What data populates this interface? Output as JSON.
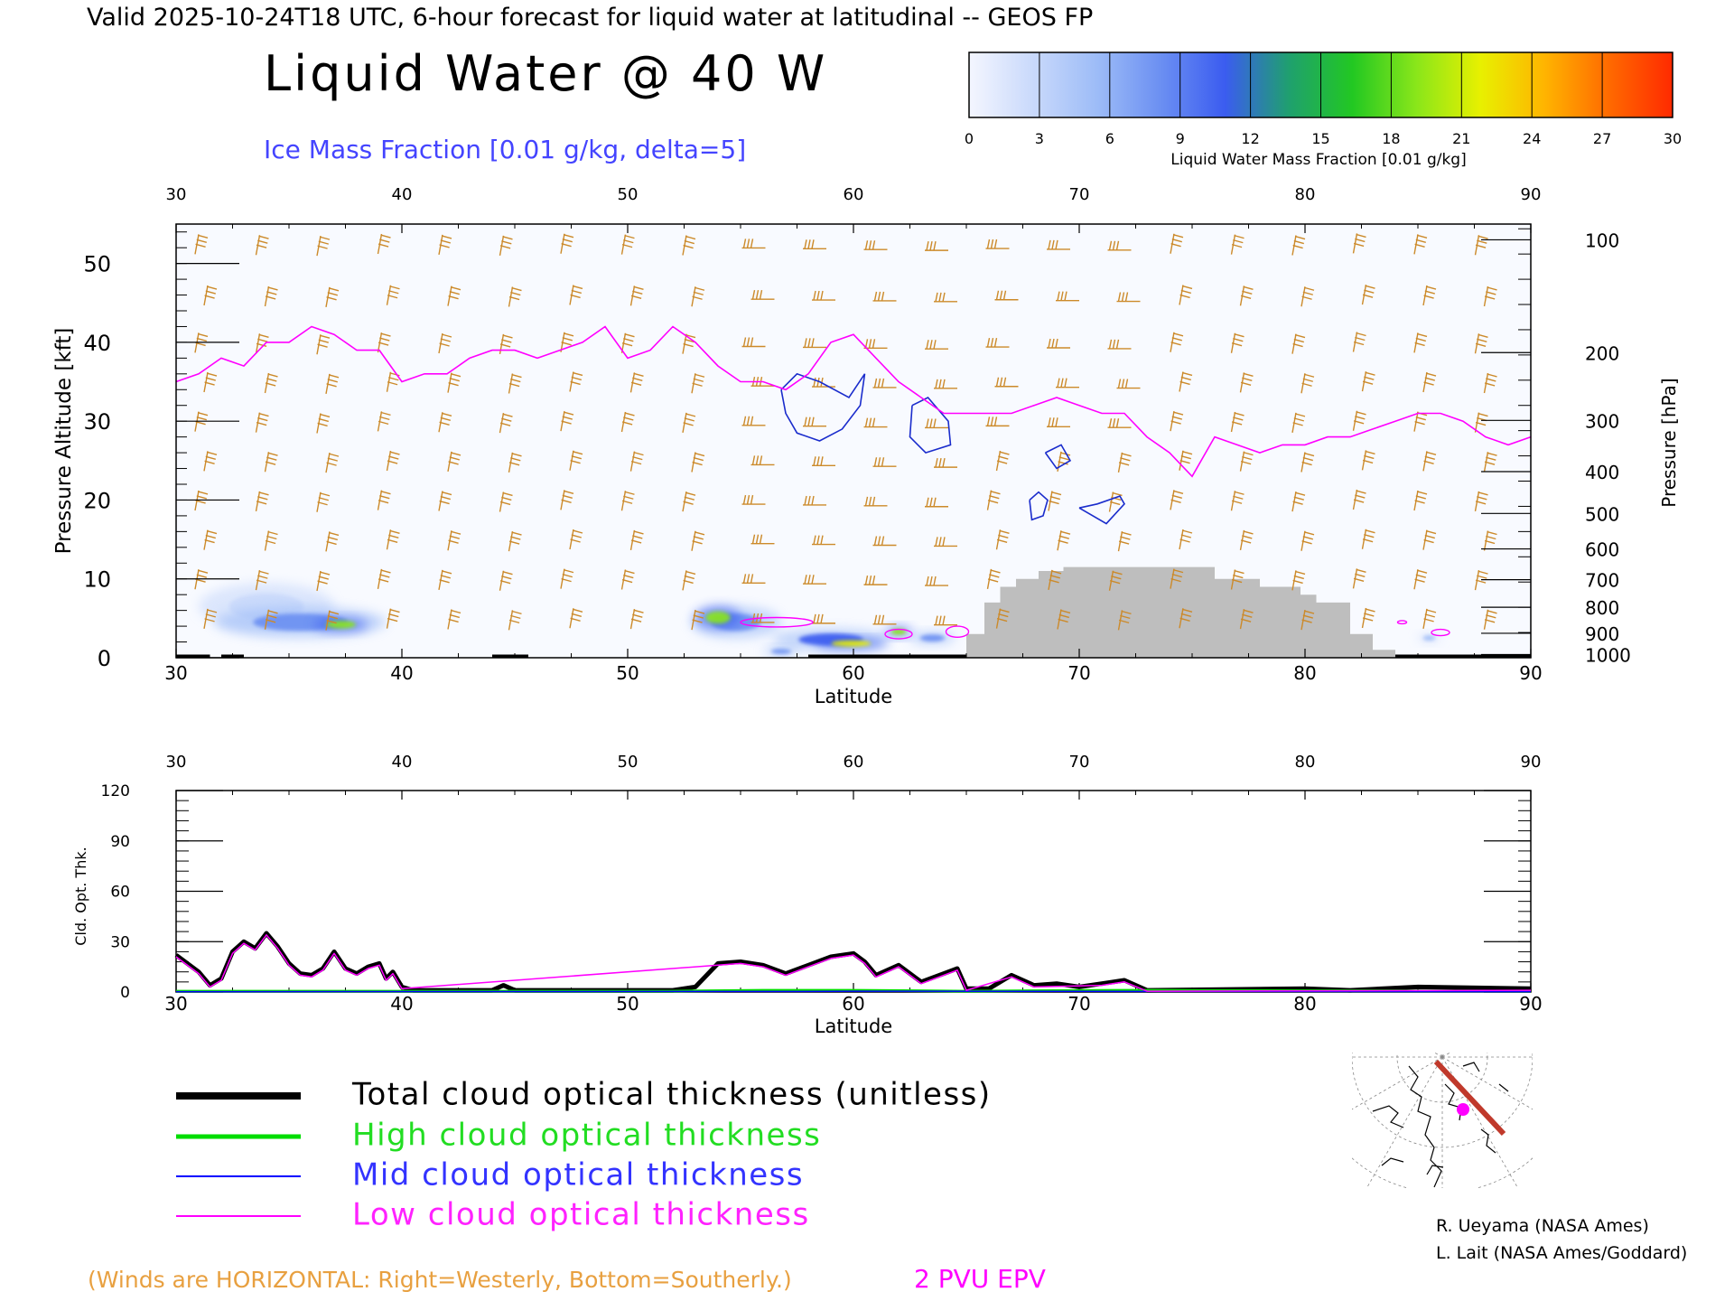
{
  "header": {
    "valid_line": "Valid 2025-10-24T18 UTC, 6-hour forecast for liquid water at latitudinal -- GEOS FP",
    "title": "Liquid Water @ 40 W",
    "subtitle": "Ice Mass Fraction [0.01 g/kg, delta=5]"
  },
  "colorbar": {
    "ticks": [
      "0",
      "3",
      "6",
      "9",
      "12",
      "15",
      "18",
      "21",
      "24",
      "27",
      "30"
    ],
    "label": "Liquid Water Mass Fraction [0.01 g/kg]",
    "colors": [
      "#f4f6ff",
      "#c9d9fb",
      "#9dbcf7",
      "#6b8ff2",
      "#3b5cf0",
      "#1fa06e",
      "#22c822",
      "#8ae61a",
      "#e8f000",
      "#ffb400",
      "#ff6a00",
      "#ff2a00"
    ]
  },
  "chart_data": [
    {
      "type": "heatmap",
      "name_hint": "upper-cross-section",
      "x_ticks": [
        "30",
        "40",
        "50",
        "60",
        "70",
        "80",
        "90"
      ],
      "xlabel": "Latitude",
      "ylabel": "Pressure Altitude [kft]",
      "y_ticks": [
        "0",
        "10",
        "20",
        "30",
        "40",
        "50"
      ],
      "xlim": [
        30,
        90
      ],
      "ylim": [
        0,
        55
      ],
      "right_ylabel": "Pressure [hPa]",
      "pressure_ticks": [
        {
          "label": "100",
          "kft": 53
        },
        {
          "label": "200",
          "kft": 38.7
        },
        {
          "label": "300",
          "kft": 30.1
        },
        {
          "label": "400",
          "kft": 23.6
        },
        {
          "label": "500",
          "kft": 18.3
        },
        {
          "label": "600",
          "kft": 13.8
        },
        {
          "label": "700",
          "kft": 9.9
        },
        {
          "label": "800",
          "kft": 6.4
        },
        {
          "label": "900",
          "kft": 3.1
        },
        {
          "label": "1000",
          "kft": 0.4
        }
      ],
      "epv_2pvu": [
        [
          30,
          35
        ],
        [
          31,
          36
        ],
        [
          32,
          38
        ],
        [
          33,
          37
        ],
        [
          34,
          40
        ],
        [
          35,
          40
        ],
        [
          36,
          42
        ],
        [
          37,
          41
        ],
        [
          38,
          39
        ],
        [
          39,
          39
        ],
        [
          40,
          35
        ],
        [
          41,
          36
        ],
        [
          42,
          36
        ],
        [
          43,
          38
        ],
        [
          44,
          39
        ],
        [
          45,
          39
        ],
        [
          46,
          38
        ],
        [
          47,
          39
        ],
        [
          48,
          40
        ],
        [
          49,
          42
        ],
        [
          50,
          38
        ],
        [
          51,
          39
        ],
        [
          52,
          42
        ],
        [
          53,
          40
        ],
        [
          54,
          37
        ],
        [
          55,
          35
        ],
        [
          56,
          35
        ],
        [
          57,
          34
        ],
        [
          58,
          36
        ],
        [
          59,
          40
        ],
        [
          60,
          41
        ],
        [
          61,
          38
        ],
        [
          62,
          35
        ],
        [
          63,
          33
        ],
        [
          64,
          31
        ],
        [
          65,
          31
        ],
        [
          66,
          31
        ],
        [
          67,
          31
        ],
        [
          68,
          32
        ],
        [
          69,
          33
        ],
        [
          70,
          32
        ],
        [
          71,
          31
        ],
        [
          72,
          31
        ],
        [
          73,
          28
        ],
        [
          74,
          26
        ],
        [
          75,
          23
        ],
        [
          76,
          28
        ],
        [
          77,
          27
        ],
        [
          78,
          26
        ],
        [
          79,
          27
        ],
        [
          80,
          27
        ],
        [
          81,
          28
        ],
        [
          82,
          28
        ],
        [
          83,
          29
        ],
        [
          84,
          30
        ],
        [
          85,
          31
        ],
        [
          86,
          31
        ],
        [
          87,
          30
        ],
        [
          88,
          28
        ],
        [
          89,
          27
        ],
        [
          90,
          28
        ]
      ],
      "terrain": [
        [
          30,
          0
        ],
        [
          65,
          0
        ],
        [
          65,
          3
        ],
        [
          65.8,
          3
        ],
        [
          65.8,
          7
        ],
        [
          66.5,
          7
        ],
        [
          66.5,
          9
        ],
        [
          67.2,
          9
        ],
        [
          67.2,
          10
        ],
        [
          68.2,
          10
        ],
        [
          68.2,
          11
        ],
        [
          69.3,
          11
        ],
        [
          69.3,
          11.5
        ],
        [
          76,
          11.5
        ],
        [
          76,
          10
        ],
        [
          78,
          10
        ],
        [
          78,
          9
        ],
        [
          79.8,
          9
        ],
        [
          79.8,
          8
        ],
        [
          80.5,
          8
        ],
        [
          80.5,
          7
        ],
        [
          82,
          7
        ],
        [
          82,
          3
        ],
        [
          83,
          3
        ],
        [
          83,
          1
        ],
        [
          84,
          1
        ],
        [
          84,
          0
        ],
        [
          90,
          0
        ]
      ],
      "liquid_water_blobs": [
        {
          "lat": 37.3,
          "kft": 4.2,
          "value": 20,
          "wlat": 1.2,
          "hkft": 0.9
        },
        {
          "lat": 35.5,
          "kft": 4.5,
          "value": 8,
          "wlat": 3.8,
          "hkft": 2.0
        },
        {
          "lat": 34,
          "kft": 6.5,
          "value": 3,
          "wlat": 3,
          "hkft": 3
        },
        {
          "lat": 54,
          "kft": 5.1,
          "value": 18,
          "wlat": 1.0,
          "hkft": 1.4
        },
        {
          "lat": 54.8,
          "kft": 4.5,
          "value": 9,
          "wlat": 2,
          "hkft": 2
        },
        {
          "lat": 59.9,
          "kft": 1.8,
          "value": 21,
          "wlat": 1.6,
          "hkft": 0.7
        },
        {
          "lat": 59,
          "kft": 2.3,
          "value": 10,
          "wlat": 2.6,
          "hkft": 1.4
        },
        {
          "lat": 62,
          "kft": 3.3,
          "value": 18,
          "wlat": 0.6,
          "hkft": 0.7
        },
        {
          "lat": 63.5,
          "kft": 2.5,
          "value": 9,
          "wlat": 1,
          "hkft": 0.8
        },
        {
          "lat": 56.8,
          "kft": 0.8,
          "value": 8,
          "wlat": 0.8,
          "hkft": 0.6
        },
        {
          "lat": 85.5,
          "kft": 2.5,
          "value": 5,
          "wlat": 0.5,
          "hkft": 0.6
        }
      ],
      "ice_contours": [
        [
          [
            56.8,
            34
          ],
          [
            57.5,
            36
          ],
          [
            58.5,
            35
          ],
          [
            59.8,
            33
          ],
          [
            60.5,
            36
          ],
          [
            60.3,
            32
          ],
          [
            59.5,
            29
          ],
          [
            58.5,
            27.5
          ],
          [
            57.5,
            28.5
          ],
          [
            57,
            31
          ],
          [
            56.8,
            34
          ]
        ],
        [
          [
            62.6,
            32
          ],
          [
            63.3,
            33
          ],
          [
            64.2,
            30
          ],
          [
            64.3,
            27
          ],
          [
            63.2,
            26
          ],
          [
            62.5,
            28
          ],
          [
            62.6,
            32
          ]
        ],
        [
          [
            68.5,
            26
          ],
          [
            69.2,
            27
          ],
          [
            69.6,
            25
          ],
          [
            69,
            24
          ],
          [
            68.5,
            26
          ]
        ],
        [
          [
            67.8,
            20
          ],
          [
            68.2,
            21
          ],
          [
            68.6,
            20
          ],
          [
            68.4,
            18
          ],
          [
            67.9,
            17.5
          ],
          [
            67.8,
            20
          ]
        ],
        [
          [
            70,
            19
          ],
          [
            71.2,
            17
          ],
          [
            72,
            19.5
          ],
          [
            71.8,
            20.5
          ],
          [
            70.8,
            19.5
          ],
          [
            70,
            19
          ]
        ]
      ]
    },
    {
      "type": "line",
      "name_hint": "lower-optical-thickness",
      "x_ticks": [
        "30",
        "40",
        "50",
        "60",
        "70",
        "80",
        "90"
      ],
      "xlabel": "Latitude",
      "ylabel": "Cld. Opt. Thk.",
      "y_ticks": [
        "0",
        "30",
        "60",
        "90",
        "120"
      ],
      "xlim": [
        30,
        90
      ],
      "ylim": [
        0,
        120
      ],
      "series": [
        {
          "name": "Total cloud optical thickness (unitless)",
          "color": "#000000",
          "points": [
            [
              30,
              22
            ],
            [
              31,
              12
            ],
            [
              31.5,
              4
            ],
            [
              32,
              8
            ],
            [
              32.5,
              24
            ],
            [
              33,
              30
            ],
            [
              33.5,
              26
            ],
            [
              34,
              35
            ],
            [
              34.5,
              27
            ],
            [
              35,
              17
            ],
            [
              35.5,
              11
            ],
            [
              36,
              10
            ],
            [
              36.5,
              14
            ],
            [
              37,
              24
            ],
            [
              37.5,
              14
            ],
            [
              38,
              11
            ],
            [
              38.5,
              15
            ],
            [
              39,
              17
            ],
            [
              39.3,
              8
            ],
            [
              39.6,
              12
            ],
            [
              40,
              3
            ],
            [
              40.5,
              1
            ],
            [
              44,
              1
            ],
            [
              44.5,
              4
            ],
            [
              45,
              1
            ],
            [
              52,
              1
            ],
            [
              53,
              3
            ],
            [
              54,
              17
            ],
            [
              55,
              18
            ],
            [
              56,
              16
            ],
            [
              57,
              11
            ],
            [
              58,
              16
            ],
            [
              59,
              21
            ],
            [
              60,
              23
            ],
            [
              60.5,
              18
            ],
            [
              61,
              10
            ],
            [
              62,
              16
            ],
            [
              63,
              6
            ],
            [
              64,
              11
            ],
            [
              64.6,
              14
            ],
            [
              65,
              2
            ],
            [
              66,
              2
            ],
            [
              67,
              10
            ],
            [
              68,
              4
            ],
            [
              69,
              5
            ],
            [
              70,
              3
            ],
            [
              71,
              5
            ],
            [
              72,
              7
            ],
            [
              73,
              1
            ],
            [
              80,
              2
            ],
            [
              82,
              1
            ],
            [
              85,
              3
            ],
            [
              90,
              2
            ]
          ]
        },
        {
          "name": "High cloud optical thickness",
          "color": "#00dd00",
          "points": [
            [
              30,
              0.5
            ],
            [
              40,
              0.5
            ],
            [
              52,
              0.5
            ],
            [
              56,
              1
            ],
            [
              60,
              1
            ],
            [
              65,
              0.5
            ],
            [
              72,
              1
            ],
            [
              90,
              0.5
            ]
          ]
        },
        {
          "name": "Mid cloud optical thickness",
          "color": "#0000ff",
          "points": [
            [
              30,
              0.2
            ],
            [
              57,
              0.3
            ],
            [
              60,
              0.5
            ],
            [
              70,
              0.4
            ],
            [
              90,
              0.2
            ]
          ]
        },
        {
          "name": "Low cloud optical thickness",
          "color": "#ff00ff",
          "points": [
            [
              30,
              21
            ],
            [
              31,
              11
            ],
            [
              31.5,
              3
            ],
            [
              32,
              7
            ],
            [
              32.5,
              23
            ],
            [
              33,
              29
            ],
            [
              33.5,
              25
            ],
            [
              34,
              34
            ],
            [
              34.5,
              26
            ],
            [
              35,
              16
            ],
            [
              35.5,
              10
            ],
            [
              36,
              9
            ],
            [
              36.5,
              13
            ],
            [
              37,
              23
            ],
            [
              37.5,
              13
            ],
            [
              38,
              10
            ],
            [
              38.5,
              14
            ],
            [
              39,
              16
            ],
            [
              39.3,
              7
            ],
            [
              39.6,
              11
            ],
            [
              40,
              2
            ],
            [
              54,
              16
            ],
            [
              55,
              17
            ],
            [
              56,
              15
            ],
            [
              57,
              10
            ],
            [
              58,
              15
            ],
            [
              59,
              20
            ],
            [
              60,
              22
            ],
            [
              60.5,
              17
            ],
            [
              61,
              9
            ],
            [
              62,
              15
            ],
            [
              63,
              5
            ],
            [
              64,
              10
            ],
            [
              64.6,
              13
            ],
            [
              65,
              1
            ],
            [
              67,
              9
            ],
            [
              68,
              3
            ],
            [
              71,
              4
            ],
            [
              72,
              6
            ],
            [
              73,
              0.5
            ],
            [
              90,
              1
            ]
          ]
        }
      ]
    }
  ],
  "legend": {
    "total": "Total cloud optical thickness (unitless)",
    "high": "High cloud optical thickness",
    "mid": "Mid cloud optical thickness",
    "low": "Low cloud optical thickness"
  },
  "credits": {
    "line1": "R. Ueyama (NASA Ames)",
    "line2": "L. Lait (NASA Ames/Goddard)"
  },
  "footer": {
    "winds_note": "(Winds are HORIZONTAL: Right=Westerly, Bottom=Southerly.)",
    "epv_label": "2 PVU EPV"
  },
  "colors": {
    "wind": "#cc8a2a",
    "epv": "#ff00ff",
    "ice": "#1a2ccc",
    "terrain": "#bebebe",
    "subtitle": "#4444ff",
    "map_track": "#c0392b",
    "map_marker": "#ff00ff"
  }
}
